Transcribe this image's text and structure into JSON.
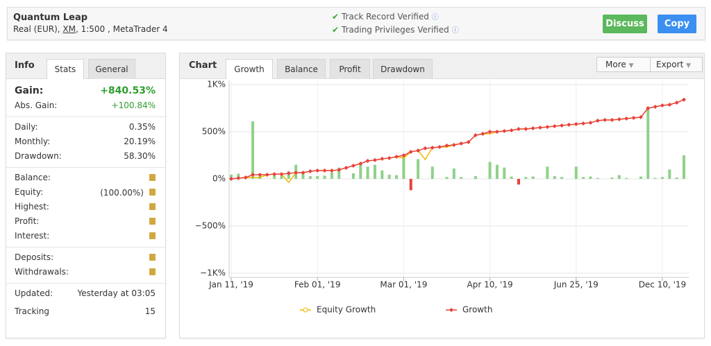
{
  "header": {
    "title": "Quantum Leap",
    "account": [
      "Real (EUR), ",
      "XM",
      ", 1:500 , MetaTrader 4"
    ],
    "verifications": [
      "Track Record Verified",
      "Trading Privileges Verified"
    ],
    "buttons": [
      "Discuss",
      "Copy"
    ]
  },
  "info": {
    "tabs": [
      "Info",
      "Stats",
      "General"
    ],
    "gain": {
      "label": "Gain:",
      "value": "+840.53%"
    },
    "groups": [
      [
        {
          "label": "Abs. Gain:",
          "value": "+100.84%"
        }
      ],
      [
        {
          "label": "Daily:",
          "value": "0.35%"
        },
        {
          "label": "Monthly:",
          "value": "20.19%"
        },
        {
          "label": "Drawdown:",
          "value": "58.30%"
        }
      ],
      [
        {
          "label": "Balance:",
          "locked": true
        },
        {
          "label": "Equity:",
          "value": "(100.00%)",
          "locked": true
        },
        {
          "label": "Highest:",
          "locked": true
        },
        {
          "label": "Profit:",
          "locked": true
        },
        {
          "label": "Interest:",
          "locked": true
        }
      ],
      [
        {
          "label": "Deposits:",
          "locked": true
        },
        {
          "label": "Withdrawals:",
          "locked": true
        }
      ],
      [
        {
          "label": "Updated:",
          "value": "Yesterday at 03:05"
        },
        {
          "label": "Tracking",
          "value": "15"
        }
      ]
    ]
  },
  "chart_panel": {
    "title": "Chart",
    "tabs": [
      "Growth",
      "Balance",
      "Profit",
      "Drawdown"
    ],
    "menus": [
      "More",
      "Export"
    ]
  },
  "chart_data": {
    "type": "line",
    "categories": [
      "Jan 11, '19",
      null,
      null,
      null,
      null,
      null,
      null,
      null,
      null,
      null,
      null,
      null,
      "Feb 01, '19",
      null,
      null,
      null,
      null,
      null,
      null,
      null,
      null,
      null,
      null,
      null,
      "Mar 01, '19",
      null,
      null,
      null,
      null,
      null,
      null,
      null,
      null,
      null,
      null,
      null,
      "Apr 10, '19",
      null,
      null,
      null,
      null,
      null,
      null,
      null,
      null,
      null,
      null,
      null,
      "Jun 25, '19",
      null,
      null,
      null,
      null,
      null,
      null,
      null,
      null,
      null,
      null,
      null,
      "Dec 10, '19",
      null,
      null,
      null
    ],
    "ylim": [
      -1000,
      1000
    ],
    "yticks": [
      {
        "value": 1000,
        "label": "1K%"
      },
      {
        "value": 500,
        "label": "500%"
      },
      {
        "value": 0,
        "label": "0%"
      },
      {
        "value": -500,
        "label": "−500%"
      },
      {
        "value": -1000,
        "label": "−1K%"
      }
    ],
    "grid": true,
    "series": [
      {
        "type": "bar",
        "color": "#8fd18a",
        "negative_color": "#e8413c",
        "values": [
          45,
          55,
          0,
          610,
          40,
          0,
          40,
          35,
          80,
          150,
          60,
          30,
          30,
          35,
          70,
          120,
          0,
          60,
          170,
          130,
          150,
          90,
          45,
          40,
          240,
          -120,
          210,
          0,
          130,
          0,
          20,
          110,
          20,
          0,
          30,
          0,
          180,
          150,
          120,
          25,
          -60,
          20,
          25,
          0,
          130,
          30,
          20,
          0,
          130,
          20,
          25,
          10,
          0,
          15,
          40,
          10,
          0,
          25,
          760,
          10,
          20,
          100,
          15,
          250
        ]
      },
      {
        "type": "line",
        "name": "Equity Growth",
        "color": "#f2b500",
        "values": [
          0,
          7,
          15,
          15,
          15,
          44,
          51,
          51,
          -37,
          66,
          66,
          81,
          88,
          88,
          88,
          96,
          118,
          140,
          162,
          191,
          199,
          213,
          221,
          235,
          221,
          287,
          301,
          206,
          331,
          338,
          338,
          360,
          375,
          390,
          463,
          478,
          478,
          500,
          507,
          515,
          529,
          529,
          537,
          544,
          551,
          559,
          566,
          574,
          581,
          588,
          596,
          618,
          625,
          625,
          632,
          640,
          647,
          654,
          750,
          765,
          779,
          787,
          809,
          840
        ]
      },
      {
        "type": "line",
        "name": "Growth",
        "color": "#e8413c",
        "marker": "diamond",
        "values": [
          0,
          7,
          15,
          44,
          44,
          44,
          51,
          51,
          59,
          66,
          66,
          81,
          88,
          88,
          88,
          96,
          118,
          140,
          162,
          191,
          199,
          213,
          221,
          235,
          250,
          287,
          301,
          324,
          331,
          338,
          353,
          360,
          375,
          390,
          463,
          478,
          500,
          500,
          507,
          515,
          529,
          529,
          537,
          544,
          551,
          559,
          566,
          574,
          581,
          588,
          596,
          618,
          625,
          625,
          632,
          640,
          647,
          654,
          750,
          765,
          779,
          787,
          809,
          840
        ]
      }
    ]
  }
}
